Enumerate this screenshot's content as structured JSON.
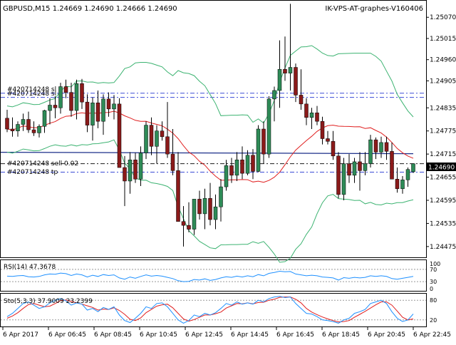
{
  "header": {
    "symbol_info": "GBPUSD,M15  1.24669 1.24690 1.24666 1.24690",
    "indicator_name": "IK-VPS-AT-graphes-V160406"
  },
  "order_labels": {
    "upper_1": "#420714248 sl",
    "upper_2": "#420714248 sl",
    "order_sell": "#420714248 sell 0.02",
    "order_tp": "#420714248 tp"
  },
  "price_axis": {
    "ticks": [
      "1.25070",
      "1.25015",
      "1.24960",
      "1.24905",
      "1.24835",
      "1.24775",
      "1.24715",
      "1.24655",
      "1.24595",
      "1.24535",
      "1.24475"
    ],
    "current_price": "1.24690"
  },
  "rsi": {
    "label": "RSI(14) 47.3678",
    "ticks": [
      "100",
      "70",
      "30",
      "0"
    ]
  },
  "stoch": {
    "label": "Sto(5,3,3) 37.9009 23.2399",
    "ticks": [
      "80",
      "20"
    ]
  },
  "time_axis": {
    "ticks": [
      "6 Apr 2017",
      "6 Apr 06:45",
      "6 Apr 08:45",
      "6 Apr 10:45",
      "6 Apr 12:45",
      "6 Apr 14:45",
      "6 Apr 16:45",
      "6 Apr 18:45",
      "6 Apr 20:45",
      "6 Apr 22:45"
    ]
  },
  "colors": {
    "bull": "#2e8b57",
    "bear": "#8b1a1a",
    "bands": "#3cb371",
    "ma": "#e02020",
    "blue_line": "#1c2f8a",
    "rsi_line": "#1e90ff",
    "stoch_main": "#1e90ff",
    "stoch_signal": "#e02020"
  },
  "chart_data": {
    "type": "candlestick",
    "symbol": "GBPUSD",
    "timeframe": "M15",
    "candles_ohlc": [
      [
        1.24808,
        1.2483,
        1.24772,
        1.2478
      ],
      [
        1.2478,
        1.2481,
        1.2476,
        1.24775
      ],
      [
        1.24775,
        1.248,
        1.2476,
        1.24792
      ],
      [
        1.24792,
        1.2482,
        1.24775,
        1.24805
      ],
      [
        1.24805,
        1.24825,
        1.2477,
        1.24778
      ],
      [
        1.24778,
        1.248,
        1.24762,
        1.2477
      ],
      [
        1.2477,
        1.24792,
        1.24758,
        1.24787
      ],
      [
        1.24787,
        1.2483,
        1.2477,
        1.24828
      ],
      [
        1.24828,
        1.2486,
        1.24792,
        1.24842
      ],
      [
        1.24842,
        1.24865,
        1.24808,
        1.24835
      ],
      [
        1.24835,
        1.249,
        1.2482,
        1.2489
      ],
      [
        1.2489,
        1.24908,
        1.2486,
        1.24875
      ],
      [
        1.24875,
        1.249,
        1.24812,
        1.24828
      ],
      [
        1.24828,
        1.24908,
        1.24805,
        1.24898
      ],
      [
        1.24898,
        1.2491,
        1.24832,
        1.2485
      ],
      [
        1.2485,
        1.2487,
        1.24772,
        1.2479
      ],
      [
        1.2479,
        1.24862,
        1.2475,
        1.24848
      ],
      [
        1.24848,
        1.2488,
        1.24782,
        1.248
      ],
      [
        1.248,
        1.2487,
        1.24765,
        1.24858
      ],
      [
        1.24858,
        1.24875,
        1.24812,
        1.24832
      ],
      [
        1.24832,
        1.24868,
        1.24805,
        1.24845
      ],
      [
        1.24845,
        1.2486,
        1.24682,
        1.2468
      ],
      [
        1.2468,
        1.2471,
        1.2458,
        1.24645
      ],
      [
        1.24645,
        1.2472,
        1.24612,
        1.247
      ],
      [
        1.247,
        1.24718,
        1.2464,
        1.2465
      ],
      [
        1.2465,
        1.24735,
        1.24632,
        1.24718
      ],
      [
        1.24718,
        1.248,
        1.24702,
        1.2479
      ],
      [
        1.2479,
        1.2481,
        1.24712,
        1.24735
      ],
      [
        1.24735,
        1.2479,
        1.2469,
        1.24775
      ],
      [
        1.24775,
        1.248,
        1.2475,
        1.2476
      ],
      [
        1.2476,
        1.2485,
        1.24705,
        1.24715
      ],
      [
        1.24715,
        1.2478,
        1.2466,
        1.24672
      ],
      [
        1.24672,
        1.2472,
        1.246,
        1.2454
      ],
      [
        1.2454,
        1.2458,
        1.24475,
        1.2453
      ],
      [
        1.2453,
        1.2459,
        1.24512,
        1.2452
      ],
      [
        1.2452,
        1.24595,
        1.24505,
        1.24598
      ],
      [
        1.24598,
        1.2462,
        1.24545,
        1.2456
      ],
      [
        1.2456,
        1.24625,
        1.2452,
        1.246
      ],
      [
        1.246,
        1.2464,
        1.2453,
        1.24545
      ],
      [
        1.24545,
        1.2461,
        1.2452,
        1.24578
      ],
      [
        1.24578,
        1.2465,
        1.2454,
        1.2463
      ],
      [
        1.2463,
        1.247,
        1.2462,
        1.24685
      ],
      [
        1.24685,
        1.24705,
        1.2464,
        1.2466
      ],
      [
        1.2466,
        1.2472,
        1.24645,
        1.247
      ],
      [
        1.247,
        1.24735,
        1.2465,
        1.24665
      ],
      [
        1.24665,
        1.24725,
        1.2466,
        1.24712
      ],
      [
        1.24712,
        1.24728,
        1.2465,
        1.2467
      ],
      [
        1.2467,
        1.2479,
        1.24668,
        1.2478
      ],
      [
        1.2478,
        1.248,
        1.2469,
        1.24715
      ],
      [
        1.24715,
        1.24865,
        1.24705,
        1.24858
      ],
      [
        1.24858,
        1.2489,
        1.248,
        1.2488
      ],
      [
        1.2488,
        1.2501,
        1.24835,
        1.24935
      ],
      [
        1.24935,
        1.2502,
        1.24905,
        1.24925
      ],
      [
        1.24925,
        1.25105,
        1.2488,
        1.2494
      ],
      [
        1.2494,
        1.2495,
        1.2485,
        1.24868
      ],
      [
        1.24868,
        1.24935,
        1.2483,
        1.24845
      ],
      [
        1.24845,
        1.2486,
        1.2479,
        1.2481
      ],
      [
        1.2481,
        1.24835,
        1.2478,
        1.24822
      ],
      [
        1.24822,
        1.2484,
        1.2479,
        1.248
      ],
      [
        1.248,
        1.24812,
        1.2474,
        1.24755
      ],
      [
        1.24755,
        1.24775,
        1.2474,
        1.24748
      ],
      [
        1.24748,
        1.24775,
        1.247,
        1.2471
      ],
      [
        1.2471,
        1.2472,
        1.246,
        1.2461
      ],
      [
        1.2461,
        1.24705,
        1.24595,
        1.2469
      ],
      [
        1.2469,
        1.24715,
        1.2464,
        1.2466
      ],
      [
        1.2466,
        1.24705,
        1.2464,
        1.24695
      ],
      [
        1.24695,
        1.2472,
        1.2462,
        1.24672
      ],
      [
        1.24672,
        1.2472,
        1.2466,
        1.2469
      ],
      [
        1.2469,
        1.24765,
        1.2468,
        1.24752
      ],
      [
        1.24752,
        1.24758,
        1.24702,
        1.2472
      ],
      [
        1.2472,
        1.2476,
        1.24705,
        1.24745
      ],
      [
        1.24745,
        1.2476,
        1.247,
        1.24722
      ],
      [
        1.24722,
        1.24745,
        1.2465,
        1.2465
      ],
      [
        1.2465,
        1.2468,
        1.24615,
        1.24625
      ],
      [
        1.24625,
        1.24658,
        1.24612,
        1.24648
      ],
      [
        1.24648,
        1.2468,
        1.2463,
        1.24675
      ],
      [
        1.24669,
        1.2469,
        1.24666,
        1.2469
      ]
    ],
    "price_range": [
      1.24447,
      1.25113
    ],
    "blue_line_price": 1.24716,
    "levels": [
      {
        "name": "sl-1",
        "price": 1.24873,
        "style": "dash-dot",
        "color": "#3b4bd6"
      },
      {
        "name": "sl-2",
        "price": 1.24862,
        "style": "dash-dot",
        "color": "#3b4bd6"
      },
      {
        "name": "sell",
        "price": 1.2469,
        "style": "dash-dot",
        "color": "#1a1a1a"
      },
      {
        "name": "tp",
        "price": 1.24668,
        "style": "dash-dot",
        "color": "#3b4bd6"
      }
    ],
    "rsi_values": [
      48,
      47,
      49,
      50,
      46,
      45,
      47,
      52,
      55,
      54,
      58,
      56,
      50,
      55,
      52,
      45,
      51,
      47,
      53,
      50,
      52,
      42,
      38,
      45,
      41,
      47,
      52,
      48,
      50,
      48,
      44,
      40,
      33,
      30,
      31,
      37,
      35,
      39,
      34,
      37,
      42,
      46,
      44,
      48,
      45,
      49,
      46,
      53,
      49,
      57,
      60,
      64,
      62,
      63,
      55,
      52,
      49,
      51,
      49,
      45,
      44,
      42,
      35,
      43,
      41,
      44,
      42,
      44,
      49,
      47,
      49,
      47,
      40,
      38,
      41,
      44,
      47
    ],
    "stoch_main": [
      30,
      40,
      55,
      70,
      75,
      65,
      55,
      60,
      72,
      80,
      85,
      78,
      65,
      72,
      68,
      50,
      55,
      45,
      58,
      52,
      60,
      35,
      18,
      12,
      25,
      40,
      60,
      55,
      70,
      72,
      60,
      40,
      20,
      10,
      18,
      35,
      30,
      40,
      35,
      42,
      55,
      70,
      65,
      75,
      68,
      72,
      68,
      80,
      75,
      85,
      90,
      92,
      88,
      90,
      70,
      55,
      40,
      38,
      30,
      20,
      18,
      15,
      10,
      20,
      25,
      40,
      45,
      52,
      70,
      75,
      80,
      70,
      45,
      25,
      15,
      20,
      38
    ],
    "stoch_signal": [
      25,
      32,
      42,
      55,
      67,
      70,
      65,
      60,
      62,
      70,
      79,
      81,
      76,
      72,
      68,
      63,
      58,
      50,
      53,
      52,
      57,
      49,
      37,
      22,
      18,
      26,
      42,
      52,
      62,
      66,
      68,
      57,
      40,
      23,
      16,
      21,
      28,
      35,
      35,
      39,
      44,
      56,
      63,
      70,
      69,
      72,
      69,
      73,
      74,
      80,
      83,
      89,
      90,
      90,
      83,
      72,
      55,
      44,
      36,
      29,
      23,
      18,
      14,
      15,
      18,
      28,
      37,
      46,
      56,
      66,
      75,
      75,
      65,
      47,
      28,
      20,
      23
    ]
  }
}
